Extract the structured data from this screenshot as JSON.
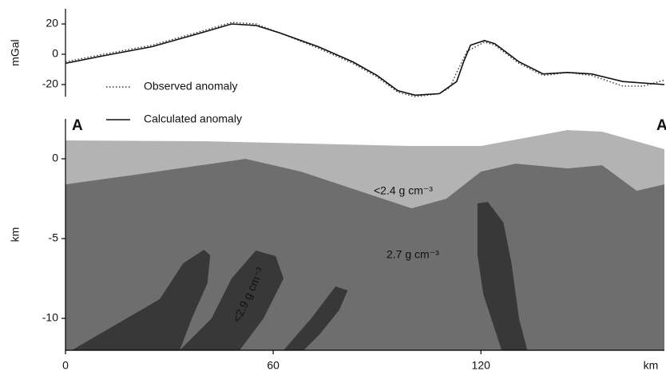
{
  "chart_data": [
    {
      "type": "line",
      "ylabel": "mGal",
      "xlim": [
        0,
        173
      ],
      "ylim": [
        -28,
        30
      ],
      "yticks": [
        -20,
        0,
        20
      ],
      "series": [
        {
          "name": "Observed anomaly",
          "color": "#333333",
          "style": "dotted",
          "x": [
            0,
            11,
            25,
            39,
            48,
            55,
            62,
            73,
            83,
            90,
            96,
            101,
            108,
            111,
            113,
            116,
            121,
            124,
            131,
            138,
            145,
            152,
            161,
            167,
            173
          ],
          "values": [
            -5,
            0,
            6,
            15,
            21,
            20,
            14,
            4,
            -6,
            -15,
            -25,
            -28,
            -26,
            -22,
            -12,
            2,
            8,
            6,
            -6,
            -14,
            -12,
            -14,
            -21,
            -21,
            -17
          ]
        },
        {
          "name": "Calculated anomaly",
          "color": "#111111",
          "style": "solid",
          "x": [
            0,
            11,
            25,
            39,
            48,
            55,
            62,
            73,
            83,
            90,
            96,
            101,
            108,
            113,
            115,
            117,
            121,
            124,
            131,
            138,
            145,
            152,
            161,
            173
          ],
          "values": [
            -6,
            -1,
            5,
            14,
            20,
            19,
            14,
            5,
            -5,
            -14,
            -24,
            -27,
            -26,
            -18,
            -5,
            6,
            9,
            7,
            -5,
            -13,
            -12,
            -13,
            -18,
            -20
          ]
        }
      ]
    },
    {
      "type": "section",
      "ylabel": "km",
      "xlabel": "km",
      "xlim": [
        0,
        173
      ],
      "xticks": [
        0,
        60,
        120
      ],
      "ylim": [
        -12,
        2.5
      ],
      "yticks": [
        -10,
        -5,
        0
      ],
      "bodies": [
        {
          "color": "#b3b3b3",
          "x": [
            0,
            40,
            100,
            120,
            145,
            155,
            173,
            173,
            165,
            155,
            145,
            130,
            120,
            110,
            100,
            68,
            52,
            20,
            0
          ],
          "y": [
            1.15,
            1.1,
            0.8,
            0.8,
            1.8,
            1.7,
            0.6,
            -1.6,
            -2.0,
            -0.4,
            -0.6,
            -0.3,
            -0.8,
            -2.5,
            -3.1,
            -0.8,
            0,
            -1.0,
            -1.6
          ]
        },
        {
          "color": "#6e6e6e",
          "x": [
            0,
            20,
            52,
            68,
            100,
            110,
            120,
            130,
            145,
            155,
            165,
            173,
            173,
            0
          ],
          "y": [
            -1.6,
            -1.0,
            0,
            -0.8,
            -3.1,
            -2.5,
            -0.8,
            -0.3,
            -0.6,
            -0.4,
            -2.0,
            -1.6,
            -12,
            -12
          ]
        },
        {
          "color": "#383838",
          "x": [
            1.8,
            27.2,
            34,
            40,
            41.8,
            41,
            36.5,
            33
          ],
          "y": [
            -12,
            -8.8,
            -6.55,
            -5.7,
            -6.05,
            -7.8,
            -10,
            -12
          ]
        },
        {
          "color": "#383838",
          "x": [
            33,
            42.2,
            48,
            55,
            60.7,
            63,
            57.2,
            50.3
          ],
          "y": [
            -12,
            -10,
            -7.5,
            -5.75,
            -6.1,
            -7.5,
            -10,
            -12
          ]
        },
        {
          "color": "#383838",
          "x": [
            63,
            71,
            78,
            81.5,
            79,
            73.4,
            68.8
          ],
          "y": [
            -12,
            -10,
            -8,
            -8.25,
            -9.5,
            -11,
            -12
          ]
        },
        {
          "color": "#383838",
          "x": [
            119,
            122,
            126.5,
            128.8,
            131,
            133.4,
            126,
            120.7,
            119
          ],
          "y": [
            -2.8,
            -2.7,
            -4,
            -6.5,
            -10,
            -12,
            -12,
            -8.5,
            -6
          ]
        }
      ],
      "annotations": [
        "A",
        "A",
        "<2.4 g cm⁻³",
        "2.7 g cm⁻³",
        "<2.9 g cm⁻³"
      ]
    }
  ]
}
